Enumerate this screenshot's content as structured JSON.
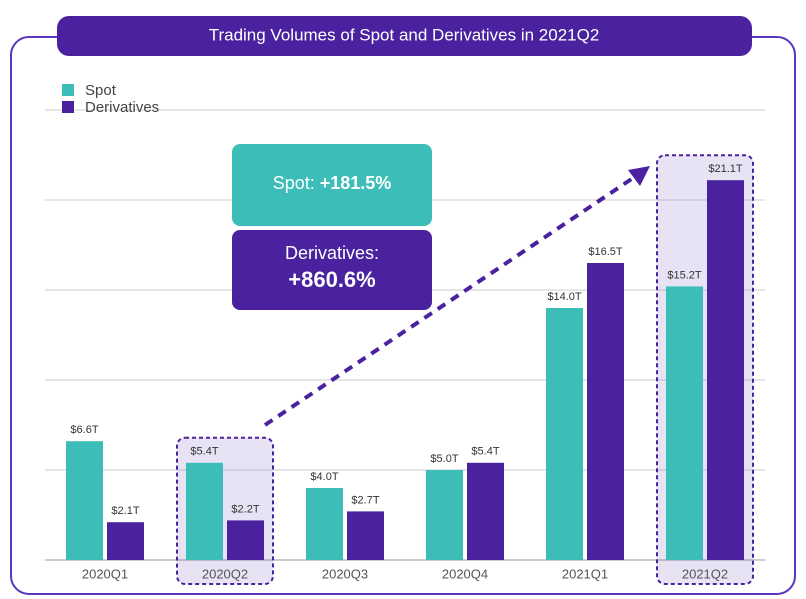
{
  "chart_data": {
    "type": "bar",
    "title": "Trading Volumes of Spot and Derivatives in 2021Q2",
    "categories": [
      "2020Q1",
      "2020Q2",
      "2020Q3",
      "2020Q4",
      "2021Q1",
      "2021Q2"
    ],
    "series": [
      {
        "name": "Spot",
        "color": "#3dbdb8",
        "values": [
          6.6,
          5.4,
          4.0,
          5.0,
          14.0,
          15.2
        ],
        "value_labels": [
          "$6.6T",
          "$5.4T",
          "$4.0T",
          "$5.0T",
          "$14.0T",
          "$15.2T"
        ]
      },
      {
        "name": "Derivatives",
        "color": "#4a22a0",
        "values": [
          2.1,
          2.2,
          2.7,
          5.4,
          16.5,
          21.1
        ],
        "value_labels": [
          "$2.1T",
          "$2.2T",
          "$2.7T",
          "$5.4T",
          "$16.5T",
          "$21.1T"
        ]
      }
    ],
    "ylim": [
      0,
      25
    ],
    "yticks": [
      0,
      5,
      10,
      15,
      20,
      25
    ],
    "grid": true,
    "legend": "top-left",
    "highlight": [
      1,
      5
    ],
    "annotations": {
      "spot_label": "Spot:",
      "spot_change": "+181.5%",
      "derivatives_label": "Derivatives:",
      "derivatives_change": "+860.6%"
    }
  }
}
